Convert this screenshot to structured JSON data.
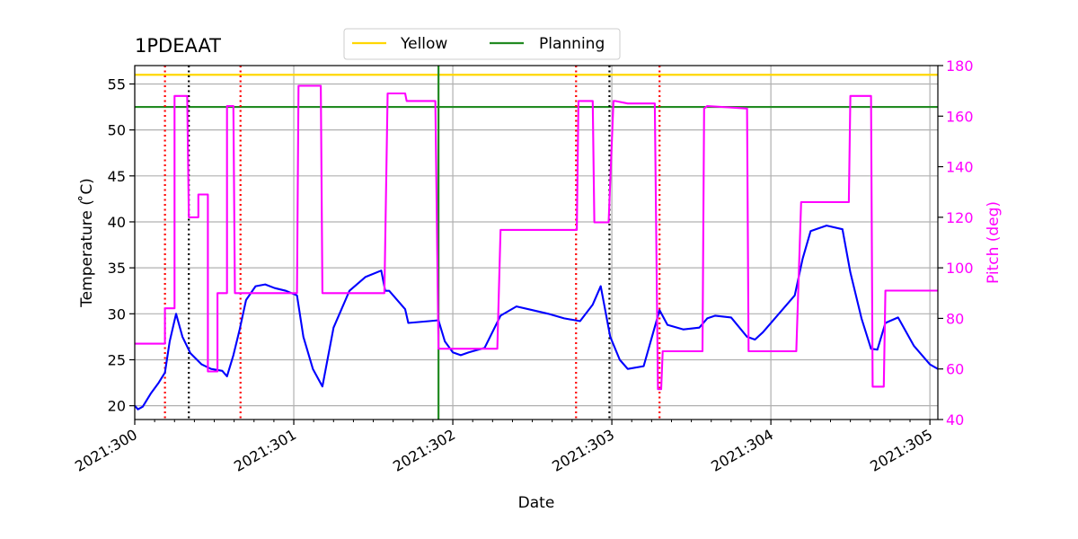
{
  "chart_data": {
    "type": "line",
    "title": "1PDEAAT",
    "xlabel": "Date",
    "ylabel_left": "Temperature ($^\\circ$C)",
    "ylabel_left_display": "Temperature ( ̊C)",
    "ylabel_right": "Pitch (deg)",
    "xlim": [
      300.0,
      305.05
    ],
    "ylim_left": [
      18.5,
      57
    ],
    "ylim_right": [
      40,
      180
    ],
    "x_ticks": [
      300,
      301,
      302,
      303,
      304,
      305
    ],
    "x_tick_labels": [
      "2021:300",
      "2021:301",
      "2021:302",
      "2021:303",
      "2021:304",
      "2021:305"
    ],
    "y_left_ticks": [
      20,
      25,
      30,
      35,
      40,
      45,
      50,
      55
    ],
    "y_right_ticks": [
      40,
      60,
      80,
      100,
      120,
      140,
      160,
      180
    ],
    "grid": true,
    "legend": {
      "position": "top-center",
      "entries": [
        {
          "name": "Yellow",
          "color": "#FFD700"
        },
        {
          "name": "Planning",
          "color": "#228B22"
        }
      ]
    },
    "hlines": [
      {
        "name": "Yellow",
        "y": 56.0,
        "color": "#FFD700"
      },
      {
        "name": "Planning",
        "y": 52.5,
        "color": "#228B22"
      }
    ],
    "vlines": [
      {
        "x": 301.91,
        "color": "#228B22",
        "style": "solid"
      },
      {
        "x": 300.19,
        "color": "#FF0000",
        "style": "dotted"
      },
      {
        "x": 300.665,
        "color": "#FF0000",
        "style": "dotted"
      },
      {
        "x": 302.775,
        "color": "#FF0000",
        "style": "dotted"
      },
      {
        "x": 303.3,
        "color": "#FF0000",
        "style": "dotted"
      },
      {
        "x": 300.34,
        "color": "#000000",
        "style": "dotted"
      },
      {
        "x": 302.985,
        "color": "#000000",
        "style": "dotted"
      }
    ],
    "series": [
      {
        "axis": "left",
        "color": "#0000FF",
        "x": [
          300.0,
          300.02,
          300.05,
          300.1,
          300.15,
          300.19,
          300.22,
          300.26,
          300.3,
          300.35,
          300.42,
          300.48,
          300.55,
          300.58,
          300.62,
          300.66,
          300.7,
          300.76,
          300.82,
          300.88,
          300.95,
          301.02,
          301.06,
          301.12,
          301.18,
          301.25,
          301.35,
          301.45,
          301.55,
          301.575,
          301.6,
          301.7,
          301.72,
          301.85,
          301.91,
          301.95,
          302.0,
          302.05,
          302.1,
          302.2,
          302.3,
          302.4,
          302.5,
          302.6,
          302.7,
          302.77,
          302.8,
          302.88,
          302.93,
          302.99,
          303.05,
          303.1,
          303.2,
          303.3,
          303.35,
          303.45,
          303.55,
          303.6,
          303.65,
          303.75,
          303.85,
          303.9,
          303.95,
          304.05,
          304.15,
          304.2,
          304.25,
          304.35,
          304.45,
          304.5,
          304.57,
          304.63,
          304.67,
          304.72,
          304.8,
          304.9,
          305.0,
          305.05
        ],
        "y": [
          20.0,
          19.6,
          19.9,
          21.3,
          22.5,
          23.6,
          27.0,
          30.0,
          27.5,
          25.7,
          24.5,
          24.0,
          23.8,
          23.2,
          25.5,
          28.3,
          31.5,
          33.0,
          33.2,
          32.8,
          32.5,
          32.0,
          27.5,
          24.0,
          22.1,
          28.5,
          32.5,
          34.0,
          34.7,
          32.5,
          32.5,
          30.5,
          29.0,
          29.2,
          29.3,
          27.0,
          25.8,
          25.5,
          25.8,
          26.3,
          29.8,
          30.8,
          30.4,
          30.0,
          29.5,
          29.3,
          29.2,
          31.0,
          33.0,
          27.5,
          25.0,
          24.0,
          24.3,
          30.4,
          28.8,
          28.3,
          28.5,
          29.5,
          29.8,
          29.6,
          27.5,
          27.2,
          28.0,
          30.0,
          32.0,
          36.0,
          39.0,
          39.6,
          39.2,
          34.5,
          29.5,
          26.2,
          26.1,
          29.0,
          29.6,
          26.5,
          24.5,
          24.0
        ]
      },
      {
        "axis": "right",
        "color": "#FF00FF",
        "x": [
          300.0,
          300.19,
          300.19,
          300.25,
          300.25,
          300.33,
          300.34,
          300.34,
          300.4,
          300.4,
          300.46,
          300.46,
          300.52,
          300.52,
          300.58,
          300.58,
          300.62,
          300.63,
          300.66,
          300.66,
          301.02,
          301.03,
          301.17,
          301.18,
          301.57,
          301.59,
          301.7,
          301.71,
          301.89,
          301.91,
          301.93,
          302.28,
          302.3,
          302.78,
          302.79,
          302.88,
          302.89,
          302.98,
          303.01,
          303.02,
          303.1,
          303.11,
          303.27,
          303.29,
          303.31,
          303.32,
          303.32,
          303.57,
          303.58,
          303.6,
          303.85,
          303.86,
          304.16,
          304.19,
          304.49,
          304.5,
          304.63,
          304.64,
          304.71,
          304.72,
          305.05
        ],
        "y": [
          70.0,
          70.0,
          84.0,
          84.0,
          168.0,
          168.0,
          120.0,
          120.0,
          120.0,
          129.0,
          129.0,
          59.0,
          59.0,
          90.0,
          90.0,
          164.0,
          164.0,
          90.0,
          90.0,
          90.0,
          90.0,
          172.0,
          172.0,
          90.0,
          90.0,
          169.0,
          169.0,
          166.0,
          166.0,
          68.0,
          68.0,
          68.0,
          115.0,
          115.0,
          166.0,
          166.0,
          118.0,
          118.0,
          166.0,
          166.0,
          165.0,
          165.0,
          165.0,
          52.0,
          52.0,
          67.0,
          67.0,
          67.0,
          163.0,
          164.0,
          163.0,
          67.0,
          67.0,
          126.0,
          126.0,
          168.0,
          168.0,
          53.0,
          53.0,
          91.0,
          91.0
        ]
      }
    ]
  }
}
